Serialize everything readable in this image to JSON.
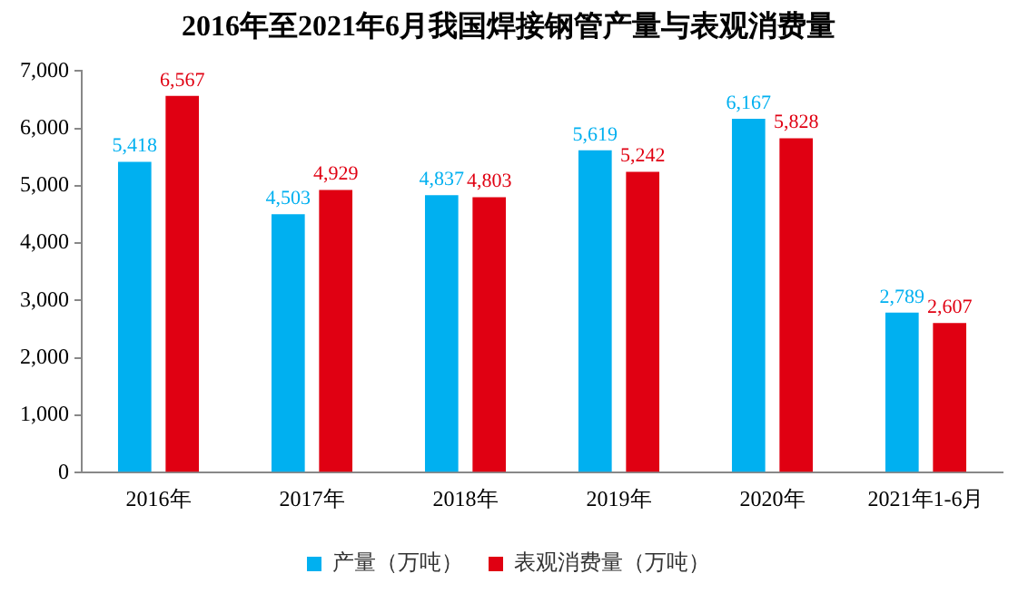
{
  "chart_data": {
    "type": "bar",
    "title": "2016年至2021年6月我国焊接钢管产量与表观消费量",
    "categories": [
      "2016年",
      "2017年",
      "2018年",
      "2019年",
      "2020年",
      "2021年1-6月"
    ],
    "series": [
      {
        "name": "产量（万吨）",
        "color": "#00b0f0",
        "values": [
          5418,
          4503,
          4837,
          5619,
          6167,
          2789
        ],
        "value_labels": [
          "5,418",
          "4,503",
          "4,837",
          "5,619",
          "6,167",
          "2,789"
        ]
      },
      {
        "name": "表观消费量（万吨）",
        "color": "#e00012",
        "values": [
          6567,
          4929,
          4803,
          5242,
          5828,
          2607
        ],
        "value_labels": [
          "6,567",
          "4,929",
          "4,803",
          "5,242",
          "5,828",
          "2,607"
        ]
      }
    ],
    "ylim": [
      0,
      7000
    ],
    "yticks": [
      0,
      {
        "value": 1000,
        "label": "1,000"
      },
      {
        "value": 2000,
        "label": "2,000"
      },
      {
        "value": 3000,
        "label": "3,000"
      },
      {
        "value": 4000,
        "label": "4,000"
      },
      {
        "value": 5000,
        "label": "5,000"
      },
      {
        "value": 6000,
        "label": "6,000"
      },
      {
        "value": 7000,
        "label": "7,000"
      }
    ],
    "grid": false,
    "legend": "bottom"
  }
}
